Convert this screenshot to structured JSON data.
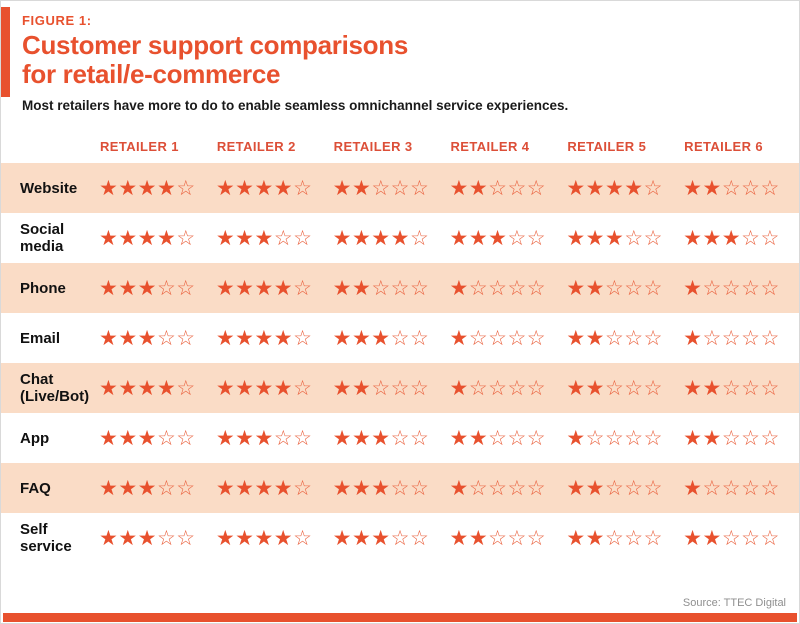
{
  "figure": {
    "label": "FIGURE 1:",
    "title_line1": "Customer support comparisons",
    "title_line2": "for retail/e-commerce",
    "subtitle": "Most retailers have more to do to enable seamless omnichannel service experiences."
  },
  "chart_data": {
    "type": "table",
    "title": "Customer support comparisons for retail/e-commerce",
    "subtitle": "Most retailers have more to do to enable seamless omnichannel service experiences.",
    "value_type": "star_rating",
    "max_stars": 5,
    "columns": [
      "RETAILER 1",
      "RETAILER 2",
      "RETAILER 3",
      "RETAILER 4",
      "RETAILER 5",
      "RETAILER 6"
    ],
    "rows": [
      {
        "channel": "Website",
        "ratings": [
          4,
          4,
          2,
          2,
          4,
          2
        ]
      },
      {
        "channel": "Social media",
        "ratings": [
          4,
          3,
          4,
          3,
          3,
          3
        ]
      },
      {
        "channel": "Phone",
        "ratings": [
          3,
          4,
          2,
          1,
          2,
          1
        ]
      },
      {
        "channel": "Email",
        "ratings": [
          3,
          4,
          3,
          1,
          2,
          1
        ]
      },
      {
        "channel": "Chat (Live/Bot)",
        "ratings": [
          4,
          4,
          2,
          1,
          2,
          2
        ]
      },
      {
        "channel": "App",
        "ratings": [
          3,
          3,
          3,
          2,
          1,
          2
        ]
      },
      {
        "channel": "FAQ",
        "ratings": [
          3,
          4,
          3,
          1,
          2,
          1
        ]
      },
      {
        "channel": "Self service",
        "ratings": [
          3,
          4,
          3,
          2,
          2,
          2
        ]
      }
    ]
  },
  "footer": {
    "source": "Source: TTEC Digital"
  },
  "colors": {
    "accent": "#E8512E",
    "header_text": "#DC4F38",
    "row_alt_background": "#FADCC6",
    "star_filled": "#E8512E",
    "star_empty": "#EA6340",
    "source_text": "#8F8F8F"
  }
}
